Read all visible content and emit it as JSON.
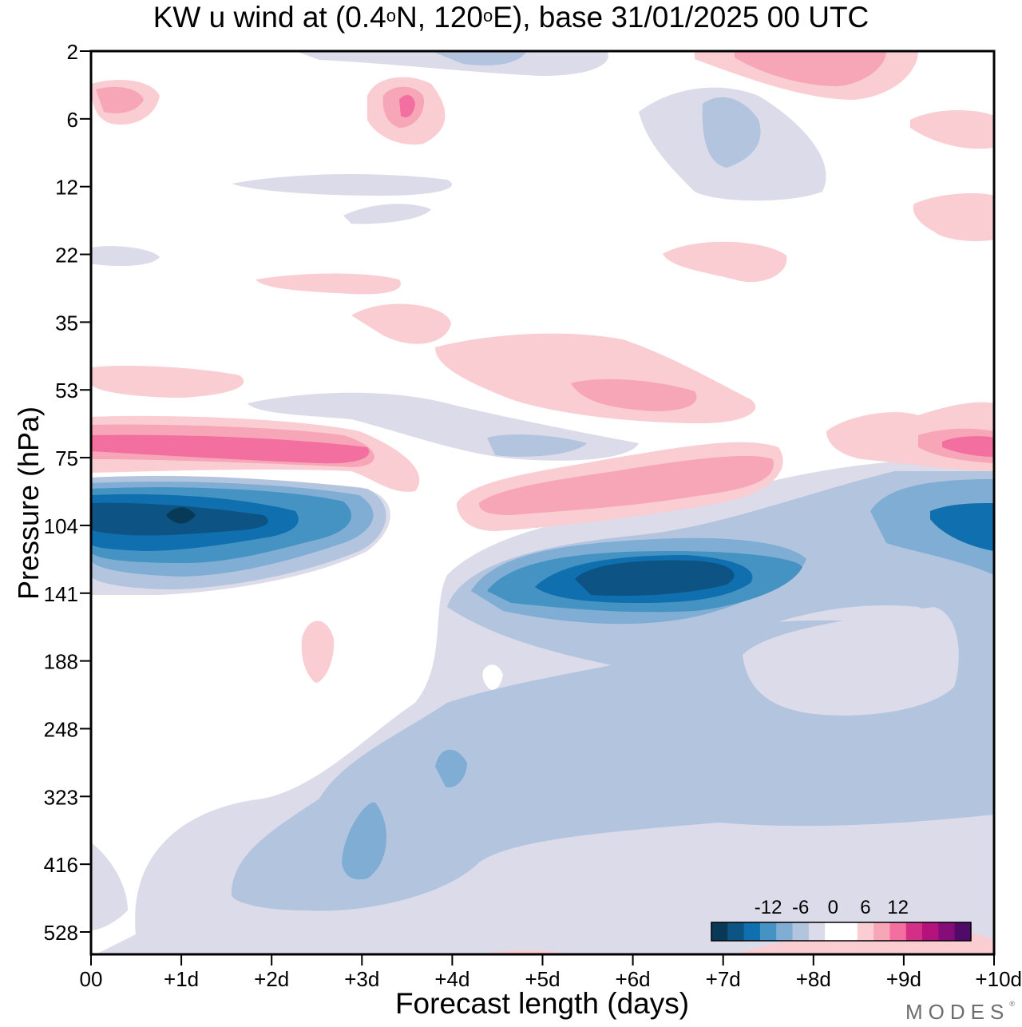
{
  "title": {
    "prefix": "KW u wind at (0.4",
    "deg1": "o",
    "mid": "N, 120",
    "deg2": "o",
    "suffix": "E),  base 31/01/2025  00 UTC"
  },
  "brand": "MODES",
  "brand_mark": "®",
  "chart_data": {
    "type": "heatmap",
    "title": "KW u wind at (0.4°N, 120°E),  base 31/01/2025  00 UTC",
    "xlabel": "Forecast length (days)",
    "ylabel": "Pressure (hPa)",
    "x_ticks": [
      "00",
      "+1d",
      "+2d",
      "+3d",
      "+4d",
      "+5d",
      "+6d",
      "+7d",
      "+8d",
      "+9d",
      "+10d"
    ],
    "x_range": [
      0,
      10
    ],
    "y_ticks": [
      "2",
      "6",
      "12",
      "22",
      "35",
      "53",
      "75",
      "104",
      "141",
      "188",
      "248",
      "323",
      "416",
      "528"
    ],
    "y_scale": "categorical pressure levels, top to bottom",
    "colorbar": {
      "tick_labels": [
        "-12",
        "-6",
        "0",
        "6",
        "12"
      ],
      "level_values": [
        -15,
        -12,
        -9,
        -6,
        -3,
        0,
        3,
        6,
        9,
        12,
        15
      ],
      "colors": [
        "#083a57",
        "#0d5484",
        "#1070af",
        "#4593c2",
        "#7fadd3",
        "#b3c4df",
        "#dcdbea",
        "#ffffff",
        "#ffffff",
        "#f9cdd2",
        "#f7a6b7",
        "#f26fa0",
        "#d42f86",
        "#b3117c",
        "#840d7a",
        "#4f0a6a"
      ]
    },
    "features": [
      {
        "name": "easterly max near 104 hPa",
        "x_days": [
          0,
          3.2
        ],
        "pressure_hPa": 104,
        "min_u": -15
      },
      {
        "name": "westerly band near 75 hPa",
        "x_days": [
          0,
          3.5
        ],
        "pressure_hPa": 75,
        "max_u": 8
      },
      {
        "name": "easterly max near 141 hPa",
        "x_days": [
          5,
          8
        ],
        "pressure_hPa": 141,
        "min_u": -11
      },
      {
        "name": "easterly near 104 hPa",
        "x_days": [
          8.5,
          10
        ],
        "pressure_hPa": 104,
        "min_u": -11
      },
      {
        "name": "westerly band near 90 hPa",
        "x_days": [
          4,
          7.6
        ],
        "pressure_hPa": 90,
        "max_u": 6
      },
      {
        "name": "easterlies 188-528 hPa",
        "x_days": [
          0.5,
          10
        ],
        "pressure_hPa": [
          188,
          528
        ],
        "min_u": -8
      }
    ]
  },
  "colors": {
    "frame": "#000000",
    "background": "#ffffff"
  }
}
